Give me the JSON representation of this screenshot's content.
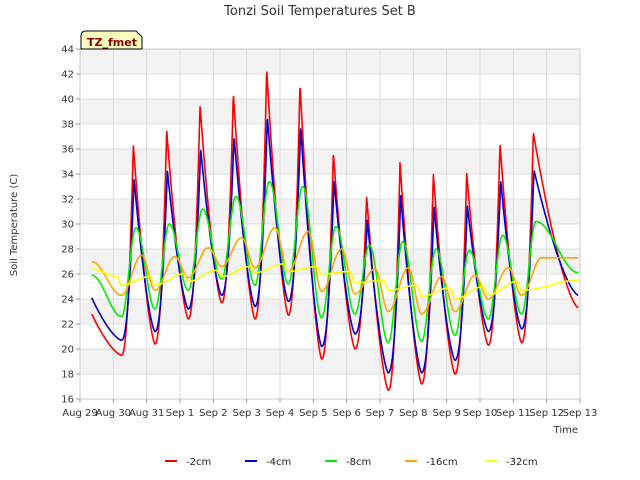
{
  "chart_data": {
    "type": "line",
    "title": "Tonzi Soil Temperatures Set B",
    "xlabel": "Time",
    "ylabel": "Soil Temperature (C)",
    "badge": "TZ_fmet",
    "xlim": [
      0,
      15
    ],
    "ylim": [
      16,
      44
    ],
    "x_ticks": [
      {
        "value": 0,
        "label": "Aug 29"
      },
      {
        "value": 1,
        "label": "Aug 30"
      },
      {
        "value": 2,
        "label": "Aug 31"
      },
      {
        "value": 3,
        "label": "Sep 1"
      },
      {
        "value": 4,
        "label": "Sep 2"
      },
      {
        "value": 5,
        "label": "Sep 3"
      },
      {
        "value": 6,
        "label": "Sep 4"
      },
      {
        "value": 7,
        "label": "Sep 5"
      },
      {
        "value": 8,
        "label": "Sep 6"
      },
      {
        "value": 9,
        "label": "Sep 7"
      },
      {
        "value": 10,
        "label": "Sep 8"
      },
      {
        "value": 11,
        "label": "Sep 9"
      },
      {
        "value": 12,
        "label": "Sep 10"
      },
      {
        "value": 13,
        "label": "Sep 11"
      },
      {
        "value": 14,
        "label": "Sep 12"
      },
      {
        "value": 15,
        "label": "Sep 13"
      }
    ],
    "y_ticks": [
      16,
      18,
      20,
      22,
      24,
      26,
      28,
      30,
      32,
      34,
      36,
      38,
      40,
      42,
      44
    ],
    "grid": true,
    "legend_position": "bottom",
    "days": [
      "Aug 29",
      "Aug 30",
      "Aug 31",
      "Sep 1",
      "Sep 2",
      "Sep 3",
      "Sep 4",
      "Sep 5",
      "Sep 6",
      "Sep 7",
      "Sep 8",
      "Sep 9",
      "Sep 10",
      "Sep 11",
      "Sep 12"
    ],
    "series": [
      {
        "name": "-2cm",
        "color": "#ff0000",
        "start": 22.8,
        "end": 23.3,
        "peak_phase": 0.6,
        "shape": "sharp",
        "peaks": [
          null,
          36.3,
          37.5,
          39.5,
          40.4,
          42.4,
          41.2,
          35.7,
          32.2,
          34.9,
          34.0,
          34.1,
          36.4,
          37.3,
          38.3
        ],
        "troughs": [
          20.2,
          19.5,
          20.4,
          22.4,
          23.7,
          22.4,
          22.7,
          19.2,
          20.0,
          16.7,
          17.2,
          18.0,
          20.3,
          20.5,
          null
        ]
      },
      {
        "name": "-4cm",
        "color": "#0000cc",
        "start": 24.1,
        "end": 24.3,
        "peak_phase": 0.62,
        "shape": "sharp",
        "peaks": [
          null,
          33.6,
          34.3,
          36.0,
          37.0,
          38.6,
          37.8,
          33.5,
          30.3,
          32.3,
          31.4,
          31.5,
          33.5,
          34.3,
          35.2
        ],
        "troughs": [
          21.4,
          20.7,
          21.4,
          23.2,
          24.3,
          23.4,
          23.8,
          20.2,
          21.2,
          18.1,
          18.1,
          19.1,
          21.4,
          21.6,
          null
        ]
      },
      {
        "name": "-8cm",
        "color": "#00ee00",
        "start": 25.9,
        "end": 26.1,
        "peak_phase": 0.68,
        "shape": "smooth",
        "peaks": [
          null,
          29.7,
          30.0,
          31.2,
          32.2,
          33.4,
          33.0,
          29.8,
          28.3,
          28.6,
          28.0,
          27.9,
          29.1,
          30.2,
          30.8
        ],
        "troughs": [
          23.4,
          22.6,
          23.2,
          24.7,
          25.6,
          25.1,
          25.2,
          22.5,
          22.8,
          20.5,
          20.6,
          21.1,
          22.4,
          22.8,
          null
        ]
      },
      {
        "name": "-16cm",
        "color": "#ffa500",
        "start": 27.0,
        "end": 27.3,
        "peak_phase": 0.85,
        "shape": "smooth",
        "peaks": [
          null,
          27.5,
          27.4,
          28.1,
          28.9,
          29.7,
          29.4,
          28.0,
          26.4,
          26.5,
          25.8,
          25.9,
          26.5,
          27.3,
          27.7
        ],
        "troughs": [
          25.6,
          24.3,
          24.7,
          25.7,
          26.6,
          26.5,
          26.2,
          24.6,
          24.4,
          23.0,
          22.8,
          23.0,
          24.0,
          24.3,
          null
        ]
      },
      {
        "name": "-32cm",
        "color": "#ffff00",
        "start": 26.4,
        "end": 25.5,
        "peak_phase": 0.1,
        "shape": "smooth",
        "peaks": [
          null,
          25.8,
          25.8,
          26.0,
          26.3,
          26.6,
          26.8,
          26.6,
          26.2,
          25.5,
          25.1,
          24.9,
          25.0,
          25.4,
          25.4
        ],
        "troughs": [
          25.2,
          25.1,
          25.1,
          25.4,
          25.8,
          26.1,
          26.2,
          26.0,
          25.3,
          24.7,
          24.2,
          24.0,
          24.3,
          24.7,
          null
        ]
      }
    ]
  }
}
